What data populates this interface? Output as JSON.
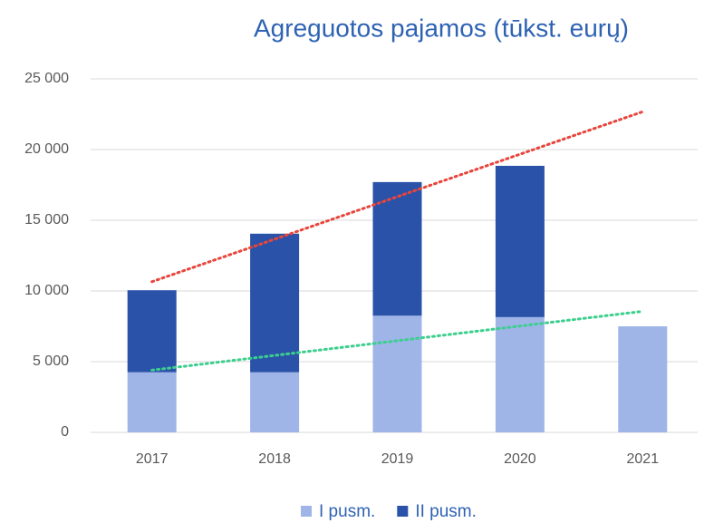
{
  "chart_data": {
    "type": "stacked_bar",
    "title": "Agreguotos pajamos (tūkst. eurų)",
    "categories": [
      "2017",
      "2018",
      "2019",
      "2020",
      "2021"
    ],
    "series": [
      {
        "name": "I pusm.",
        "color": "#9fb5e8",
        "values": [
          4250,
          4250,
          8250,
          8150,
          7500
        ],
        "trendline_color": "#3ccf8e"
      },
      {
        "name": "II pusm.",
        "color": "#2a52a8",
        "values": [
          5800,
          9800,
          9450,
          10700,
          null
        ],
        "trendline_color": "#e8453c"
      }
    ],
    "ylim": [
      0,
      25000
    ],
    "yticks": [
      0,
      {
        "value": 5000,
        "label": "5 000"
      },
      {
        "value": 10000,
        "label": "10 000"
      },
      {
        "value": 15000,
        "label": "15 000"
      },
      {
        "value": 20000,
        "label": "20 000"
      },
      {
        "value": 25000,
        "label": "25 000"
      }
    ],
    "grid": true,
    "legend": "bottom"
  }
}
